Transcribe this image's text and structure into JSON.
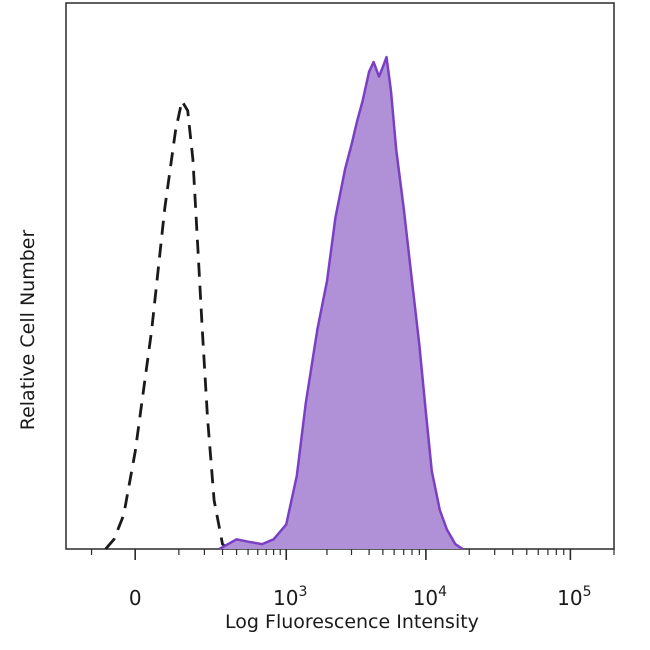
{
  "chart_data": {
    "type": "area",
    "x_scale": "biexponential",
    "xlabel": "Log Fluorescence Intensity",
    "ylabel": "Relative Cell Number",
    "xlim": [
      -200,
      200000
    ],
    "ylim": [
      0,
      1.0
    ],
    "x_ticks": [
      {
        "value": 0,
        "base": "0",
        "exp": ""
      },
      {
        "value": 1000,
        "base": "10",
        "exp": "3"
      },
      {
        "value": 10000,
        "base": "10",
        "exp": "4"
      },
      {
        "value": 100000,
        "base": "10",
        "exp": "5"
      }
    ],
    "grid": false,
    "legend": "none",
    "series": [
      {
        "style": "dashed-outline",
        "color": "#1a1a1a",
        "x": [
          -60,
          -40,
          -20,
          0,
          30,
          60,
          90,
          110,
          130,
          150,
          170,
          190,
          215,
          250,
          300,
          340
        ],
        "y": [
          0.0,
          0.02,
          0.07,
          0.2,
          0.45,
          0.7,
          0.86,
          0.92,
          0.9,
          0.8,
          0.62,
          0.45,
          0.27,
          0.1,
          0.01,
          0.0
        ]
      },
      {
        "style": "filled",
        "color": "#7b3fc4",
        "fill": "#b091d8",
        "x": [
          280,
          400,
          500,
          650,
          800,
          1000,
          1200,
          1400,
          1700,
          2000,
          2300,
          2700,
          3000,
          3300,
          3600,
          4000,
          4300,
          4700,
          5000,
          5300,
          5700,
          6200,
          7000,
          8000,
          9000,
          10000,
          11000,
          12500,
          14000,
          16000,
          18000
        ],
        "y": [
          0.0,
          0.02,
          0.015,
          0.01,
          0.02,
          0.05,
          0.15,
          0.3,
          0.45,
          0.55,
          0.68,
          0.78,
          0.83,
          0.88,
          0.92,
          0.98,
          1.0,
          0.97,
          0.99,
          1.01,
          0.94,
          0.82,
          0.7,
          0.55,
          0.42,
          0.28,
          0.16,
          0.08,
          0.04,
          0.01,
          0.0
        ]
      }
    ]
  }
}
